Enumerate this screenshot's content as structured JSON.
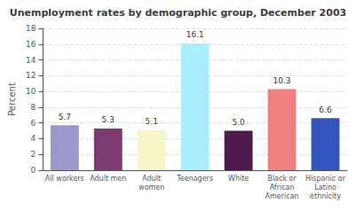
{
  "chart_data": {
    "type": "bar",
    "title": "Unemployment rates by demographic group, December 2003",
    "categories": [
      "All workers",
      "Adult men",
      "Adult\nwomen",
      "Teenagers",
      "White",
      "Black or\nAfrican\nAmerican",
      "Hispanic or\nLatino\nethnicity"
    ],
    "values": [
      5.7,
      5.3,
      5.1,
      16.1,
      5.0,
      10.3,
      6.6
    ],
    "value_labels": [
      "5.7",
      "5.3",
      "5.1",
      "16.1",
      "5.0",
      "10.3",
      "6.6"
    ],
    "data_labels": true,
    "colors": [
      "#9999cc",
      "#7b3b6e",
      "#f5f5c8",
      "#aaeeff",
      "#4d1a4d",
      "#f08080",
      "#3355bb"
    ],
    "ylabel": "Percent",
    "ylim": [
      0,
      18
    ],
    "yticks": [
      0,
      2,
      4,
      6,
      8,
      10,
      12,
      14,
      16,
      18
    ],
    "grid": true
  }
}
